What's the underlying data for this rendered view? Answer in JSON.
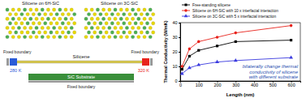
{
  "chart_data": {
    "type": "line",
    "x_label": "Length (nm)",
    "y_label": "Thermal Conductivity (W/mK)",
    "annotation": [
      "bilaterally change thermal",
      "conductivity of silicene",
      "with different substrate"
    ],
    "x": [
      10,
      50,
      100,
      200,
      300,
      600
    ],
    "xlim": [
      0,
      650
    ],
    "xticks": [
      0,
      100,
      200,
      300,
      400,
      500,
      600
    ],
    "ylim": [
      0,
      40
    ],
    "yticks": [
      0,
      10,
      20,
      30,
      40
    ],
    "series": [
      {
        "name": "Free-standing silicene",
        "color": "#000000",
        "marker": "square",
        "line_style": "solid",
        "values": [
          8,
          17,
          21,
          24,
          27,
          28
        ]
      },
      {
        "name": "Silicene on 6H-SiC with 10 x interfacial interaction",
        "color": "#e8231c",
        "marker": "circle",
        "line_style": "solid",
        "values": [
          10,
          22,
          27,
          30,
          33,
          38
        ]
      },
      {
        "name": "Silicene on 3C-SiC with 5 x interfacial interaction",
        "color": "#3a3adf",
        "marker": "triangle",
        "line_style": "solid",
        "values": [
          5,
          9,
          11,
          13,
          14,
          16
        ]
      }
    ]
  },
  "diagram": {
    "panels": [
      {
        "title": "Silicene on 6H-SiC"
      },
      {
        "title": "Silicene on 3C-SiC"
      }
    ],
    "layer_label": "Silicene",
    "substrate_label": "SiC Substrate",
    "boundary_labels": [
      "Fixed boundary",
      "Fixed boundary",
      "Fixed boundary"
    ],
    "temperatures": [
      "280 K",
      "320 K"
    ]
  }
}
